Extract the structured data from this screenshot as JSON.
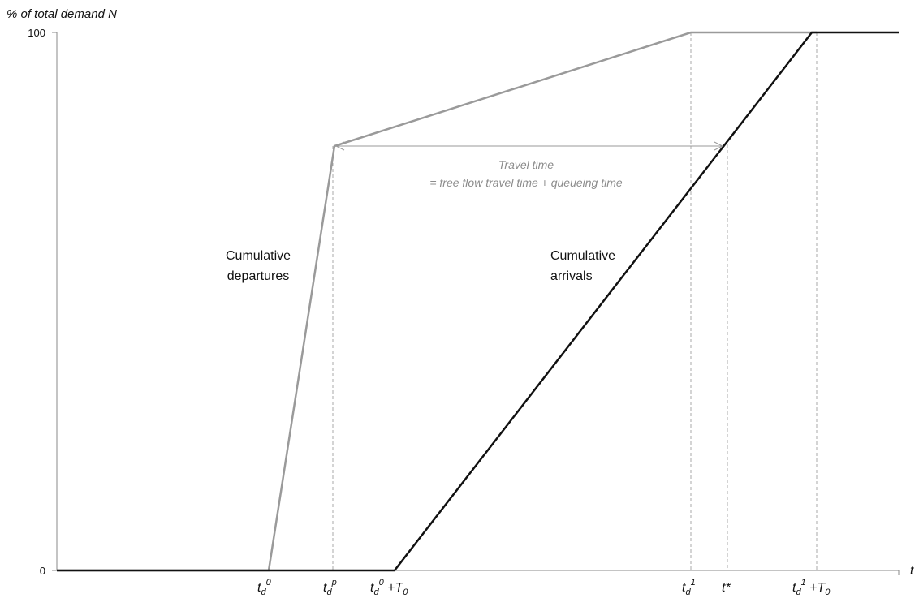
{
  "y_axis": {
    "title": "% of total demand N",
    "ticks": [
      {
        "label": "100",
        "value": 100
      },
      {
        "label": "0",
        "value": 0
      }
    ]
  },
  "x_axis": {
    "title": "t"
  },
  "time_markers": [
    {
      "id": "td0",
      "base": "t",
      "sub": "d",
      "sup": "0",
      "suffix": ""
    },
    {
      "id": "tdp",
      "base": "t",
      "sub": "d",
      "sup": "p",
      "suffix": ""
    },
    {
      "id": "td0T0",
      "base": "t",
      "sub": "d",
      "sup": "0",
      "suffix": " +T",
      "suffix_sub": "0"
    },
    {
      "id": "td1",
      "base": "t",
      "sub": "d",
      "sup": "1",
      "suffix": ""
    },
    {
      "id": "tstar",
      "base": "t*",
      "sub": "",
      "sup": "",
      "suffix": ""
    },
    {
      "id": "td1T0",
      "base": "t",
      "sub": "d",
      "sup": "1",
      "suffix": " +T",
      "suffix_sub": "0"
    }
  ],
  "curves": {
    "departures": {
      "label_line1": "Cumulative",
      "label_line2": "departures",
      "color": "#9a9a9a"
    },
    "arrivals": {
      "label_line1": "Cumulative",
      "label_line2": "arrivals",
      "color": "#111111"
    }
  },
  "annotation": {
    "line1": "Travel time",
    "line2": "= free flow travel time + queueing time",
    "color": "#8c8c8c"
  },
  "colors": {
    "axis": "#888888",
    "guide": "#aaaaaa",
    "text": "#111111"
  }
}
